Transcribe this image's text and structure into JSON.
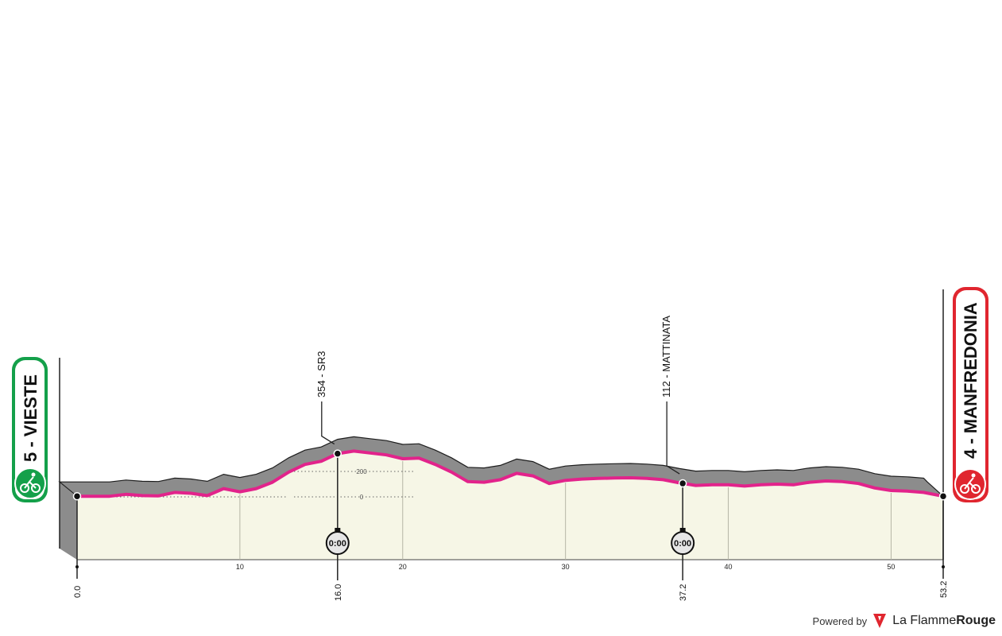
{
  "chart_data": {
    "type": "area",
    "title": "",
    "xlabel": "",
    "ylabel": "",
    "xlim": [
      0,
      53.2
    ],
    "ylim": [
      -240,
      380
    ],
    "x_ticks": [
      10,
      20,
      30,
      40,
      50
    ],
    "y_reference_lines": [
      0,
      200
    ],
    "start": {
      "label": "5 - VIESTE",
      "km": 0.0,
      "km_label": "0.0"
    },
    "finish": {
      "label": "4 - MANFREDONIA",
      "km": 53.2,
      "km_label": "53.2"
    },
    "points_of_interest": [
      {
        "label": "354 - SR3",
        "km": 16.0,
        "km_label": "16.0",
        "time_check": "0:00"
      },
      {
        "label": "112 - MATTINATA",
        "km": 37.2,
        "km_label": "37.2",
        "time_check": "0:00"
      }
    ],
    "series": [
      {
        "x": [
          0,
          1,
          2,
          3,
          4,
          5,
          6,
          7,
          8,
          9,
          10,
          11,
          12,
          13,
          14,
          15,
          16,
          17,
          18,
          19,
          20,
          21,
          22,
          23,
          24,
          25,
          26,
          27,
          28,
          29,
          30,
          31,
          32,
          33,
          34,
          35,
          36,
          37,
          38,
          39,
          40,
          41,
          42,
          43,
          44,
          45,
          46,
          47,
          48,
          49,
          50,
          51,
          52,
          53.2
        ],
        "values": [
          5,
          5,
          5,
          20,
          10,
          8,
          35,
          28,
          10,
          65,
          40,
          65,
          115,
          195,
          255,
          280,
          340,
          360,
          345,
          330,
          300,
          305,
          255,
          195,
          120,
          115,
          135,
          185,
          165,
          105,
          130,
          140,
          145,
          148,
          150,
          145,
          135,
          110,
          90,
          95,
          95,
          85,
          95,
          100,
          95,
          115,
          125,
          120,
          105,
          70,
          50,
          45,
          35,
          5
        ]
      }
    ]
  },
  "branding": {
    "powered_by": "Powered by",
    "brand_light": "La Flamme",
    "brand_bold": "Rouge"
  },
  "colors": {
    "profile_line": "#e2238b",
    "face": "#f7f7e8",
    "side": "#8a8a8a",
    "start": "#14a04a",
    "finish": "#e0262f"
  }
}
